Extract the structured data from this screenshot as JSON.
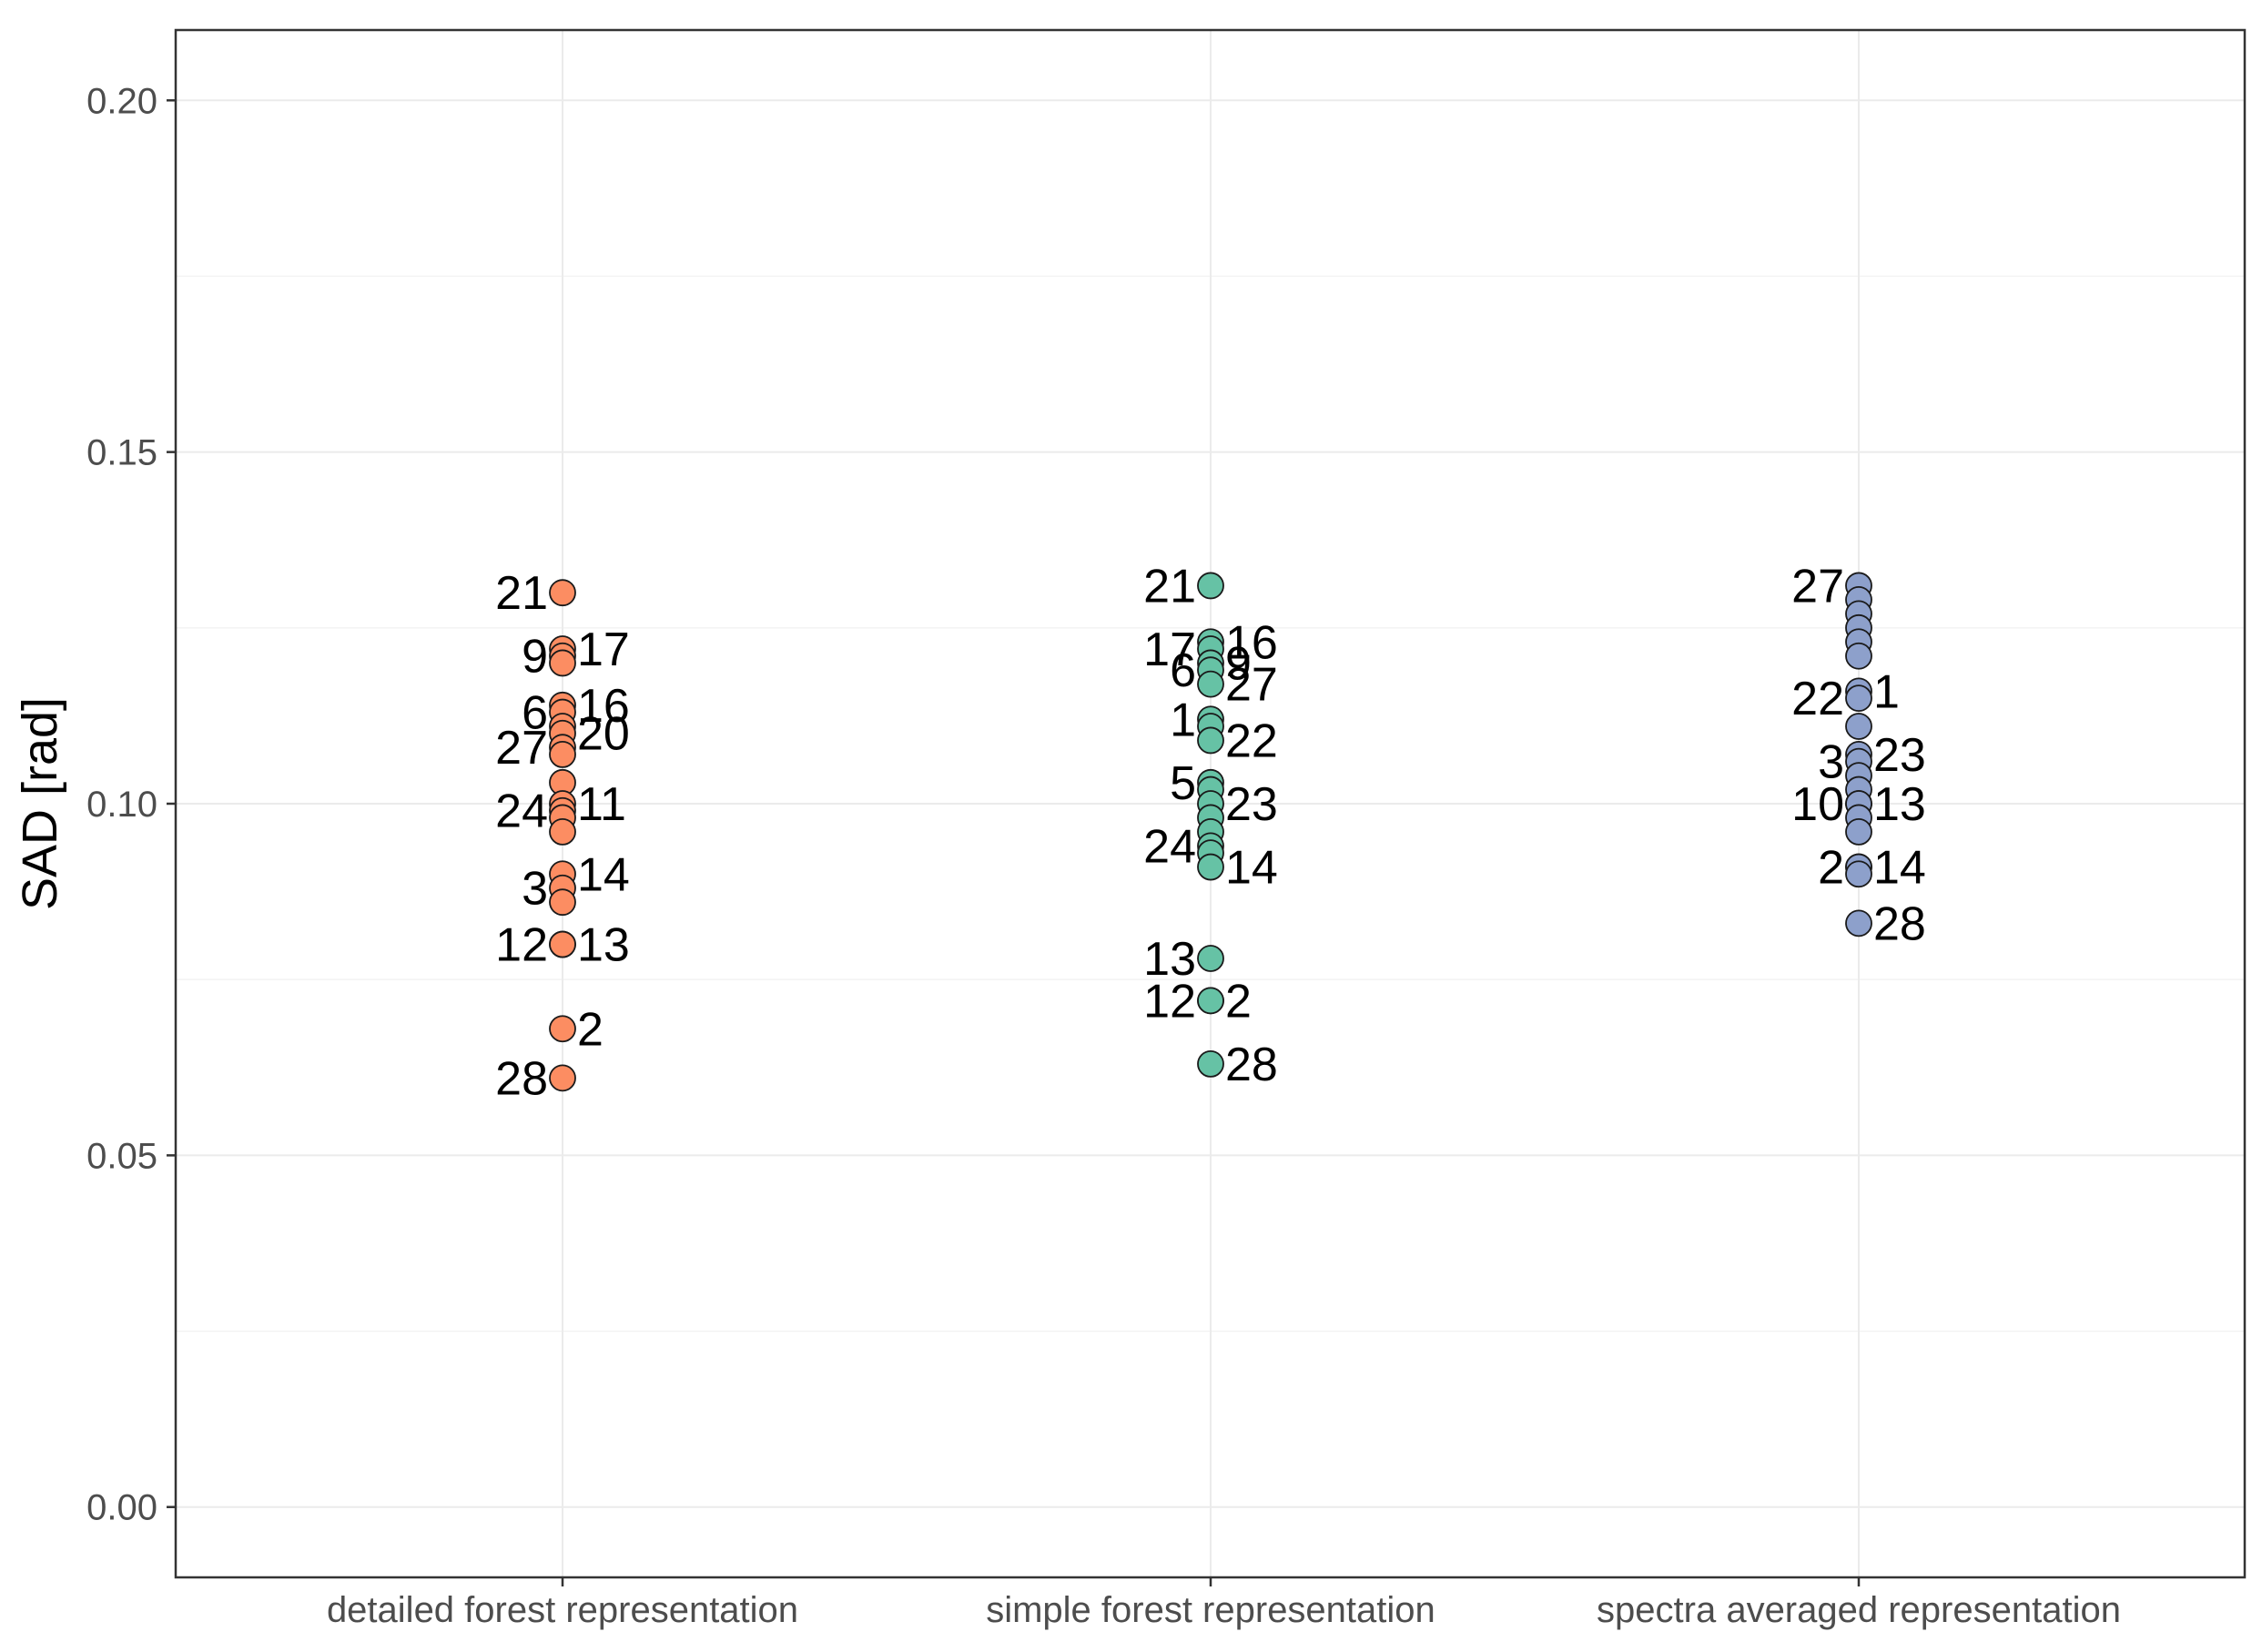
{
  "chart_data": {
    "type": "scatter",
    "title": "",
    "xlabel": "",
    "ylabel": "SAD [rad]",
    "ylim": [
      -0.01,
      0.21
    ],
    "yticks": [
      0.0,
      0.05,
      0.1,
      0.15,
      0.2
    ],
    "ytick_labels": [
      "0.00",
      "0.05",
      "0.10",
      "0.15",
      "0.20"
    ],
    "categories": [
      "detailed forest representation",
      "simple forest representation",
      "spectra averaged representation"
    ],
    "grid": true,
    "series": [
      {
        "name": "detailed forest representation",
        "color": "#fc8d62",
        "points": [
          {
            "y": 0.13,
            "label": "21"
          },
          {
            "y": 0.122,
            "label": "17"
          },
          {
            "y": 0.121,
            "label": "9"
          },
          {
            "y": 0.12,
            "label": ""
          },
          {
            "y": 0.114,
            "label": "16"
          },
          {
            "y": 0.113,
            "label": "6"
          },
          {
            "y": 0.111,
            "label": ""
          },
          {
            "y": 0.11,
            "label": "20"
          },
          {
            "y": 0.108,
            "label": "27"
          },
          {
            "y": 0.107,
            "label": ""
          },
          {
            "y": 0.103,
            "label": ""
          },
          {
            "y": 0.1,
            "label": "11"
          },
          {
            "y": 0.099,
            "label": "24"
          },
          {
            "y": 0.098,
            "label": ""
          },
          {
            "y": 0.096,
            "label": ""
          },
          {
            "y": 0.09,
            "label": "14"
          },
          {
            "y": 0.088,
            "label": "3"
          },
          {
            "y": 0.086,
            "label": ""
          },
          {
            "y": 0.08,
            "label": "13"
          },
          {
            "y": 0.08,
            "label": "12"
          },
          {
            "y": 0.068,
            "label": "2"
          },
          {
            "y": 0.061,
            "label": "28"
          }
        ]
      },
      {
        "name": "simple forest representation",
        "color": "#66c2a5",
        "points": [
          {
            "y": 0.131,
            "label": "21"
          },
          {
            "y": 0.123,
            "label": "16"
          },
          {
            "y": 0.122,
            "label": "17"
          },
          {
            "y": 0.12,
            "label": "9"
          },
          {
            "y": 0.119,
            "label": "6"
          },
          {
            "y": 0.117,
            "label": "27"
          },
          {
            "y": 0.112,
            "label": "1"
          },
          {
            "y": 0.111,
            "label": ""
          },
          {
            "y": 0.109,
            "label": "22"
          },
          {
            "y": 0.103,
            "label": "5"
          },
          {
            "y": 0.102,
            "label": ""
          },
          {
            "y": 0.1,
            "label": "23"
          },
          {
            "y": 0.098,
            "label": ""
          },
          {
            "y": 0.096,
            "label": ""
          },
          {
            "y": 0.094,
            "label": "24"
          },
          {
            "y": 0.093,
            "label": ""
          },
          {
            "y": 0.091,
            "label": "14"
          },
          {
            "y": 0.078,
            "label": "13"
          },
          {
            "y": 0.072,
            "label": "2"
          },
          {
            "y": 0.072,
            "label": "12"
          },
          {
            "y": 0.063,
            "label": "28"
          }
        ]
      },
      {
        "name": "spectra averaged representation",
        "color": "#8da0cb",
        "points": [
          {
            "y": 0.131,
            "label": "27"
          },
          {
            "y": 0.129,
            "label": ""
          },
          {
            "y": 0.127,
            "label": ""
          },
          {
            "y": 0.125,
            "label": ""
          },
          {
            "y": 0.123,
            "label": ""
          },
          {
            "y": 0.121,
            "label": ""
          },
          {
            "y": 0.116,
            "label": "1"
          },
          {
            "y": 0.115,
            "label": "22"
          },
          {
            "y": 0.111,
            "label": ""
          },
          {
            "y": 0.107,
            "label": "23"
          },
          {
            "y": 0.106,
            "label": "3"
          },
          {
            "y": 0.104,
            "label": ""
          },
          {
            "y": 0.102,
            "label": ""
          },
          {
            "y": 0.1,
            "label": "13"
          },
          {
            "y": 0.1,
            "label": "10"
          },
          {
            "y": 0.098,
            "label": ""
          },
          {
            "y": 0.096,
            "label": ""
          },
          {
            "y": 0.091,
            "label": "14"
          },
          {
            "y": 0.091,
            "label": "2"
          },
          {
            "y": 0.09,
            "label": ""
          },
          {
            "y": 0.083,
            "label": "28"
          }
        ]
      }
    ]
  }
}
